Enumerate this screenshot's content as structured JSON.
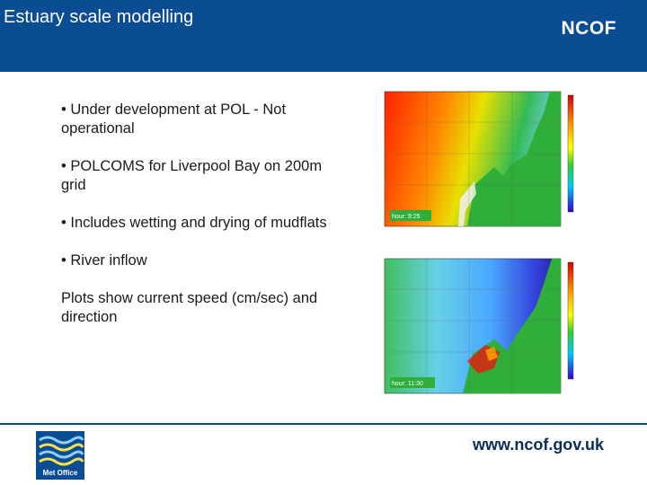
{
  "header": {
    "title": "Estuary scale modelling",
    "brand": "NCOF"
  },
  "bullets": [
    "• Under development at POL - Not operational",
    "• POLCOMS for Liverpool Bay on 200m grid",
    "• Includes wetting and drying of mudflats",
    "• River inflow",
    "Plots show current speed (cm/sec) and direction"
  ],
  "plots": [
    {
      "time_label": "hour: 9:25"
    },
    {
      "time_label": "hour: 11:30"
    }
  ],
  "footer": {
    "logo_text": "Met Office",
    "url": "www.ncof.gov.uk"
  },
  "colors": {
    "header_bg": "#0b4d93",
    "land": "#2fae3a"
  }
}
